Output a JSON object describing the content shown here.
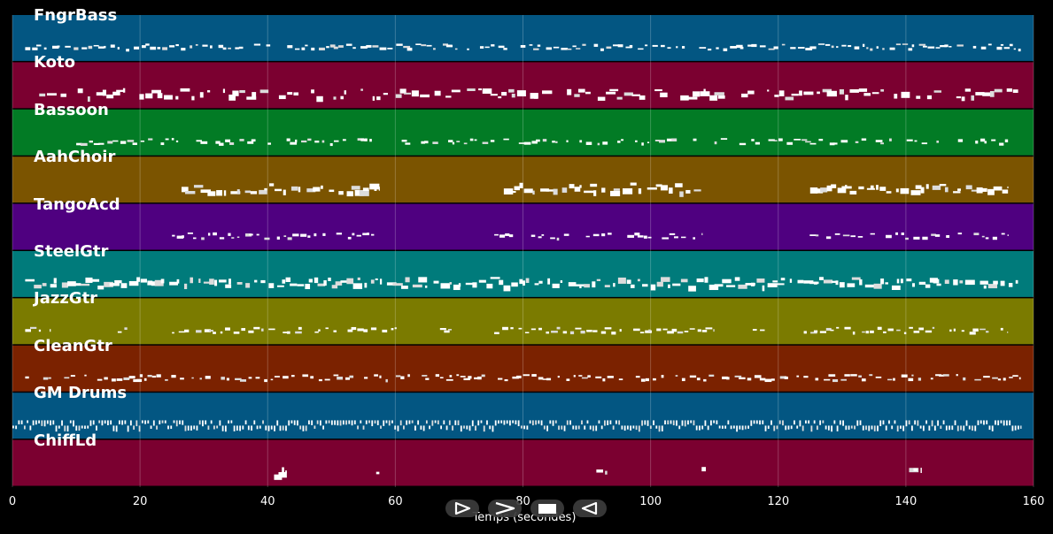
{
  "chart_data": {
    "type": "piano-roll",
    "xlabel": "Temps (secondes)",
    "xlim": [
      0,
      160
    ],
    "x_ticks": [
      0,
      20,
      40,
      60,
      80,
      100,
      120,
      140,
      160
    ],
    "tracks": [
      {
        "name": "FngrBass",
        "color": "#035682",
        "segments": [
          [
            2,
            158
          ]
        ],
        "density": 0.9,
        "style": "thin"
      },
      {
        "name": "Koto",
        "color": "#7b0030",
        "segments": [
          [
            2,
            158
          ]
        ],
        "density": 0.7,
        "style": "blocks"
      },
      {
        "name": "Bassoon",
        "color": "#027b25",
        "segments": [
          [
            5,
            6
          ],
          [
            10,
            57
          ],
          [
            61,
            108
          ],
          [
            110,
            156
          ]
        ],
        "density": 0.75,
        "style": "thin"
      },
      {
        "name": "AahChoir",
        "color": "#7b5400",
        "segments": [
          [
            26.5,
            57.5
          ],
          [
            77,
            108
          ],
          [
            125,
            156
          ]
        ],
        "density": 0.95,
        "style": "blocks"
      },
      {
        "name": "TangoAcd",
        "color": "#4f0080",
        "segments": [
          [
            25,
            57.5
          ],
          [
            75.5,
            108
          ],
          [
            124,
            156
          ]
        ],
        "density": 0.8,
        "style": "thin"
      },
      {
        "name": "SteelGtr",
        "color": "#007b7b",
        "segments": [
          [
            2,
            158
          ]
        ],
        "density": 1.0,
        "style": "blocks"
      },
      {
        "name": "JazzGtr",
        "color": "#7b7b00",
        "segments": [
          [
            2,
            6
          ],
          [
            16.5,
            18
          ],
          [
            25,
            61
          ],
          [
            67,
            69
          ],
          [
            75.5,
            110
          ],
          [
            116,
            118
          ],
          [
            124,
            156
          ]
        ],
        "density": 0.85,
        "style": "thin"
      },
      {
        "name": "CleanGtr",
        "color": "#7b2200",
        "segments": [
          [
            2,
            158
          ]
        ],
        "density": 0.85,
        "style": "thin"
      },
      {
        "name": "GM Drums",
        "color": "#035682",
        "segments": [
          [
            0,
            158
          ]
        ],
        "density": 1.0,
        "style": "drums"
      },
      {
        "name": "ChiffLd",
        "color": "#7b0030",
        "segments": [
          [
            41,
            43
          ],
          [
            57,
            57.5
          ],
          [
            91.5,
            93.5
          ],
          [
            108,
            109
          ],
          [
            140.5,
            142.5
          ]
        ],
        "density": 1.0,
        "style": "blocks"
      }
    ]
  },
  "controls": {
    "play_icon": "play-outline-icon",
    "forward_icon": "chevron-right-icon",
    "stop_icon": "stop-square-icon",
    "back_icon": "rewind-icon"
  }
}
